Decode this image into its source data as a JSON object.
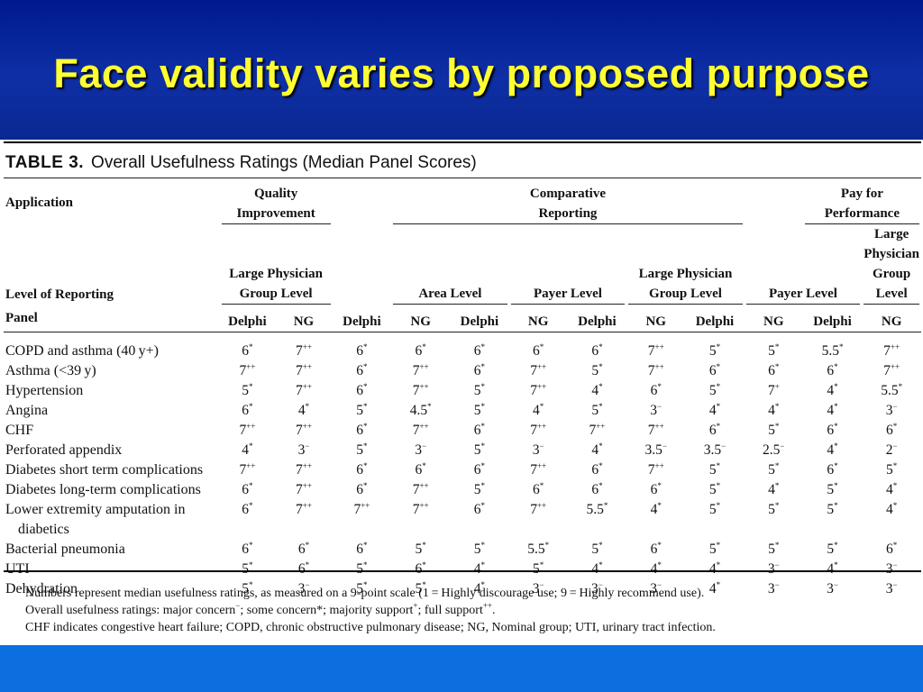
{
  "slide": {
    "title": "Face validity varies by proposed purpose"
  },
  "table": {
    "caption_label": "TABLE 3.",
    "caption_text": "Overall Usefulness Ratings (Median Panel Scores)",
    "headers": {
      "application": "Application",
      "level_of_reporting": "Level of Reporting",
      "panel": "Panel",
      "qi_line1": "Quality",
      "qi_line2": "Improvement",
      "cr_line1": "Comparative",
      "cr_line2": "Reporting",
      "pp_line1": "Pay for",
      "pp_line2": "Performance",
      "lpgl_line1": "Large Physician",
      "lpgl_line2": "Group Level",
      "area_level": "Area Level",
      "payer_level": "Payer Level",
      "delphi": "Delphi",
      "ng": "NG"
    },
    "rows": [
      {
        "application": "COPD and asthma (40 y+)",
        "cells": [
          [
            "6",
            "*"
          ],
          [
            "7",
            "++"
          ],
          [
            "6",
            "*"
          ],
          [
            "6",
            "*"
          ],
          [
            "6",
            "*"
          ],
          [
            "6",
            "*"
          ],
          [
            "6",
            "*"
          ],
          [
            "7",
            "++"
          ],
          [
            "5",
            "*"
          ],
          [
            "5",
            "*"
          ],
          [
            "5.5",
            "*"
          ],
          [
            "7",
            "++"
          ]
        ]
      },
      {
        "application": "Asthma (<39 y)",
        "cells": [
          [
            "7",
            "++"
          ],
          [
            "7",
            "++"
          ],
          [
            "6",
            "*"
          ],
          [
            "7",
            "++"
          ],
          [
            "6",
            "*"
          ],
          [
            "7",
            "++"
          ],
          [
            "5",
            "*"
          ],
          [
            "7",
            "++"
          ],
          [
            "6",
            "*"
          ],
          [
            "6",
            "*"
          ],
          [
            "6",
            "*"
          ],
          [
            "7",
            "++"
          ]
        ]
      },
      {
        "application": "Hypertension",
        "cells": [
          [
            "5",
            "*"
          ],
          [
            "7",
            "++"
          ],
          [
            "6",
            "*"
          ],
          [
            "7",
            "++"
          ],
          [
            "5",
            "*"
          ],
          [
            "7",
            "++"
          ],
          [
            "4",
            "*"
          ],
          [
            "6",
            "*"
          ],
          [
            "5",
            "*"
          ],
          [
            "7",
            "+"
          ],
          [
            "4",
            "*"
          ],
          [
            "5.5",
            "*"
          ]
        ]
      },
      {
        "application": "Angina",
        "cells": [
          [
            "6",
            "*"
          ],
          [
            "4",
            "*"
          ],
          [
            "5",
            "*"
          ],
          [
            "4.5",
            "*"
          ],
          [
            "5",
            "*"
          ],
          [
            "4",
            "*"
          ],
          [
            "5",
            "*"
          ],
          [
            "3",
            "−"
          ],
          [
            "4",
            "*"
          ],
          [
            "4",
            "*"
          ],
          [
            "4",
            "*"
          ],
          [
            "3",
            "−"
          ]
        ]
      },
      {
        "application": "CHF",
        "cells": [
          [
            "7",
            "++"
          ],
          [
            "7",
            "++"
          ],
          [
            "6",
            "*"
          ],
          [
            "7",
            "++"
          ],
          [
            "6",
            "*"
          ],
          [
            "7",
            "++"
          ],
          [
            "7",
            "++"
          ],
          [
            "7",
            "++"
          ],
          [
            "6",
            "*"
          ],
          [
            "5",
            "*"
          ],
          [
            "6",
            "*"
          ],
          [
            "6",
            "*"
          ]
        ]
      },
      {
        "application": "Perforated appendix",
        "cells": [
          [
            "4",
            "*"
          ],
          [
            "3",
            "−"
          ],
          [
            "5",
            "*"
          ],
          [
            "3",
            "−"
          ],
          [
            "5",
            "*"
          ],
          [
            "3",
            "−"
          ],
          [
            "4",
            "*"
          ],
          [
            "3.5",
            "−"
          ],
          [
            "3.5",
            "−"
          ],
          [
            "2.5",
            "−"
          ],
          [
            "4",
            "*"
          ],
          [
            "2",
            "−"
          ]
        ]
      },
      {
        "application": "Diabetes short term complications",
        "cells": [
          [
            "7",
            "++"
          ],
          [
            "7",
            "++"
          ],
          [
            "6",
            "*"
          ],
          [
            "6",
            "*"
          ],
          [
            "6",
            "*"
          ],
          [
            "7",
            "++"
          ],
          [
            "6",
            "*"
          ],
          [
            "7",
            "++"
          ],
          [
            "5",
            "*"
          ],
          [
            "5",
            "*"
          ],
          [
            "6",
            "*"
          ],
          [
            "5",
            "*"
          ]
        ]
      },
      {
        "application": "Diabetes long-term complications",
        "cells": [
          [
            "6",
            "*"
          ],
          [
            "7",
            "++"
          ],
          [
            "6",
            "*"
          ],
          [
            "7",
            "++"
          ],
          [
            "5",
            "*"
          ],
          [
            "6",
            "*"
          ],
          [
            "6",
            "*"
          ],
          [
            "6",
            "*"
          ],
          [
            "5",
            "*"
          ],
          [
            "4",
            "*"
          ],
          [
            "5",
            "*"
          ],
          [
            "4",
            "*"
          ]
        ]
      },
      {
        "application": "Lower extremity amputation in",
        "application_line2": "diabetics",
        "cells": [
          [
            "6",
            "*"
          ],
          [
            "7",
            "++"
          ],
          [
            "7",
            "++"
          ],
          [
            "7",
            "++"
          ],
          [
            "6",
            "*"
          ],
          [
            "7",
            "++"
          ],
          [
            "5.5",
            "*"
          ],
          [
            "4",
            "*"
          ],
          [
            "5",
            "*"
          ],
          [
            "5",
            "*"
          ],
          [
            "5",
            "*"
          ],
          [
            "4",
            "*"
          ]
        ]
      },
      {
        "application": "Bacterial pneumonia",
        "cells": [
          [
            "6",
            "*"
          ],
          [
            "6",
            "*"
          ],
          [
            "6",
            "*"
          ],
          [
            "5",
            "*"
          ],
          [
            "5",
            "*"
          ],
          [
            "5.5",
            "*"
          ],
          [
            "5",
            "*"
          ],
          [
            "6",
            "*"
          ],
          [
            "5",
            "*"
          ],
          [
            "5",
            "*"
          ],
          [
            "5",
            "*"
          ],
          [
            "6",
            "*"
          ]
        ]
      },
      {
        "application": "UTI",
        "cells": [
          [
            "5",
            "*"
          ],
          [
            "6",
            "*"
          ],
          [
            "5",
            "*"
          ],
          [
            "6",
            "*"
          ],
          [
            "4",
            "*"
          ],
          [
            "5",
            "*"
          ],
          [
            "4",
            "*"
          ],
          [
            "4",
            "*"
          ],
          [
            "4",
            "*"
          ],
          [
            "3",
            "−"
          ],
          [
            "4",
            "*"
          ],
          [
            "3",
            "−"
          ]
        ]
      },
      {
        "application": "Dehydration",
        "cells": [
          [
            "5",
            "*"
          ],
          [
            "3",
            "−"
          ],
          [
            "5",
            "*"
          ],
          [
            "5",
            "*"
          ],
          [
            "4",
            "*"
          ],
          [
            "3",
            "−"
          ],
          [
            "3",
            "−"
          ],
          [
            "3",
            "−"
          ],
          [
            "4",
            "*"
          ],
          [
            "3",
            "−"
          ],
          [
            "3",
            "−"
          ],
          [
            "3",
            "−"
          ]
        ]
      }
    ],
    "notes": {
      "line1_a": "Numbers represent median usefulness ratings, as measured on a 9-point scale (1 = Highly discourage use; 9 = Highly recommend use).",
      "line2_a": "Overall usefulness ratings: major concern",
      "line2_sup1": "−",
      "line2_b": "; some concern*; majority support",
      "line2_sup2": "+",
      "line2_c": "; full support",
      "line2_sup3": "++",
      "line2_d": ".",
      "line3": "CHF indicates congestive heart failure; COPD, chronic obstructive pulmonary disease; NG, Nominal group; UTI, urinary tract infection."
    }
  }
}
